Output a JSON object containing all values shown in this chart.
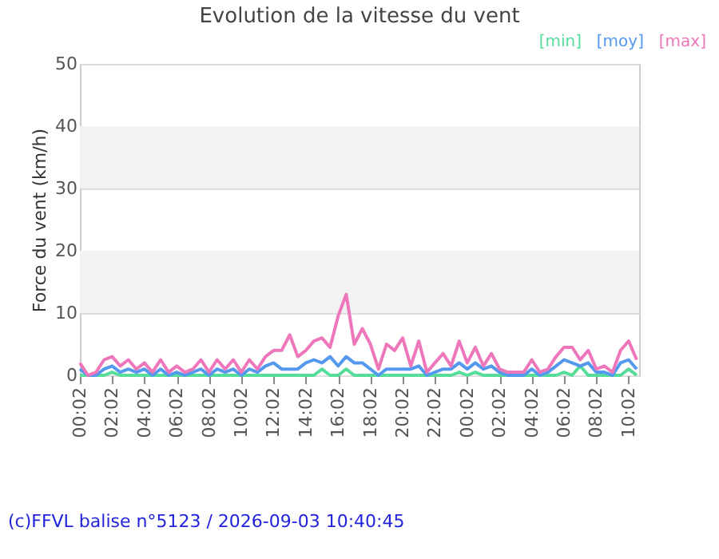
{
  "chart_data": {
    "type": "line",
    "title": "Evolution de la vitesse du vent",
    "ylabel": "Force du vent (km/h)",
    "x": [
      "2026-09-02T00:02",
      "2026-09-02T00:32",
      "2026-09-02T01:02",
      "2026-09-02T01:32",
      "2026-09-02T02:02",
      "2026-09-02T02:32",
      "2026-09-02T03:02",
      "2026-09-02T03:32",
      "2026-09-02T04:02",
      "2026-09-02T04:32",
      "2026-09-02T05:02",
      "2026-09-02T05:32",
      "2026-09-02T06:02",
      "2026-09-02T06:32",
      "2026-09-02T07:02",
      "2026-09-02T07:32",
      "2026-09-02T08:02",
      "2026-09-02T08:32",
      "2026-09-02T09:02",
      "2026-09-02T09:32",
      "2026-09-02T10:02",
      "2026-09-02T10:32",
      "2026-09-02T11:02",
      "2026-09-02T11:32",
      "2026-09-02T12:02",
      "2026-09-02T12:32",
      "2026-09-02T13:02",
      "2026-09-02T13:32",
      "2026-09-02T14:02",
      "2026-09-02T14:32",
      "2026-09-02T15:02",
      "2026-09-02T15:32",
      "2026-09-02T16:02",
      "2026-09-02T16:32",
      "2026-09-02T17:02",
      "2026-09-02T17:32",
      "2026-09-02T18:02",
      "2026-09-02T18:32",
      "2026-09-02T19:02",
      "2026-09-02T19:32",
      "2026-09-02T20:02",
      "2026-09-02T20:32",
      "2026-09-02T21:02",
      "2026-09-02T21:32",
      "2026-09-02T22:02",
      "2026-09-02T22:32",
      "2026-09-02T23:02",
      "2026-09-02T23:32",
      "2026-09-03T00:02",
      "2026-09-03T00:32",
      "2026-09-03T01:02",
      "2026-09-03T01:32",
      "2026-09-03T02:02",
      "2026-09-03T02:32",
      "2026-09-03T03:02",
      "2026-09-03T03:32",
      "2026-09-03T04:02",
      "2026-09-03T04:32",
      "2026-09-03T05:02",
      "2026-09-03T05:32",
      "2026-09-03T06:02",
      "2026-09-03T06:32",
      "2026-09-03T07:02",
      "2026-09-03T07:32",
      "2026-09-03T08:02",
      "2026-09-03T08:32",
      "2026-09-03T09:02",
      "2026-09-03T09:32",
      "2026-09-03T10:02",
      "2026-09-03T10:32"
    ],
    "series": [
      {
        "name": "[min]",
        "color": "#55dd99",
        "values": [
          0,
          0,
          0,
          0,
          0.5,
          0,
          0,
          0,
          0,
          0,
          0,
          0,
          0,
          0,
          0,
          0,
          0,
          0,
          0,
          0,
          0,
          0,
          0,
          0,
          0,
          0,
          0,
          0,
          0,
          0,
          1,
          0,
          0,
          1,
          0,
          0,
          0,
          0,
          0,
          0,
          0,
          0,
          0,
          0,
          0,
          0,
          0,
          0.5,
          0,
          0.5,
          0,
          0,
          0,
          0,
          0,
          0,
          0,
          0,
          0,
          0,
          0.5,
          0,
          1.5,
          0,
          0,
          0,
          0,
          0,
          1,
          0
        ]
      },
      {
        "name": "[moy]",
        "color": "#5599ee",
        "values": [
          1,
          0,
          0,
          1,
          1.5,
          0.5,
          1,
          0.5,
          1,
          0,
          1,
          0,
          0.5,
          0,
          0.5,
          1,
          0,
          1,
          0.5,
          1,
          0,
          1,
          0.5,
          1.5,
          2,
          1,
          1,
          1,
          2,
          2.5,
          2,
          3,
          1.5,
          3,
          2,
          2,
          1,
          0,
          1,
          1,
          1,
          1,
          1.5,
          0,
          0.5,
          1,
          1,
          2,
          1,
          2,
          1,
          1.5,
          0.5,
          0,
          0,
          0,
          1,
          0,
          0.5,
          1.5,
          2.5,
          2,
          1.5,
          2,
          0.5,
          0.5,
          0,
          2,
          2.5,
          1
        ]
      },
      {
        "name": "[max]",
        "color": "#ee77bb",
        "values": [
          2,
          0,
          0.5,
          2.5,
          3,
          1.5,
          2.5,
          1,
          2,
          0.5,
          2.5,
          0.5,
          1.5,
          0.5,
          1,
          2.5,
          0.5,
          2.5,
          1,
          2.5,
          0.5,
          2.5,
          1,
          3,
          4,
          4,
          6.5,
          3,
          4,
          5.5,
          6,
          4.5,
          9.5,
          13,
          5,
          7.5,
          5,
          1,
          5,
          4,
          6,
          1.5,
          5.5,
          0.5,
          2,
          3.5,
          1.5,
          5.5,
          2,
          4.5,
          1.5,
          3.5,
          1,
          0.5,
          0.5,
          0.5,
          2.5,
          0.5,
          1,
          3,
          4.5,
          4.5,
          2.5,
          4,
          1,
          1.5,
          0.5,
          4,
          5.5,
          2.5
        ]
      }
    ],
    "xlim": [
      "2026-09-02T00:02",
      "2026-09-03T10:41"
    ],
    "xticks": [
      {
        "value": "2026-09-02T00:02",
        "label": "00:02"
      },
      {
        "value": "2026-09-02T02:02",
        "label": "02:02"
      },
      {
        "value": "2026-09-02T04:02",
        "label": "04:02"
      },
      {
        "value": "2026-09-02T06:02",
        "label": "06:02"
      },
      {
        "value": "2026-09-02T08:02",
        "label": "08:02"
      },
      {
        "value": "2026-09-02T10:02",
        "label": "10:02"
      },
      {
        "value": "2026-09-02T12:02",
        "label": "12:02"
      },
      {
        "value": "2026-09-02T14:02",
        "label": "14:02"
      },
      {
        "value": "2026-09-02T16:02",
        "label": "16:02"
      },
      {
        "value": "2026-09-02T18:02",
        "label": "18:02"
      },
      {
        "value": "2026-09-02T20:02",
        "label": "20:02"
      },
      {
        "value": "2026-09-02T22:02",
        "label": "22:02"
      },
      {
        "value": "2026-09-03T00:02",
        "label": "00:02"
      },
      {
        "value": "2026-09-03T02:02",
        "label": "02:02"
      },
      {
        "value": "2026-09-03T04:02",
        "label": "04:02"
      },
      {
        "value": "2026-09-03T06:02",
        "label": "06:02"
      },
      {
        "value": "2026-09-03T08:02",
        "label": "08:02"
      },
      {
        "value": "2026-09-03T10:02",
        "label": "10:02"
      }
    ],
    "ylim": [
      0,
      50
    ],
    "yticks": [
      0,
      10,
      20,
      30,
      40,
      50
    ],
    "bands": [
      {
        "axis": "y",
        "from": 10,
        "to": 20,
        "color": "#f2f2f2"
      },
      {
        "axis": "y",
        "from": 30,
        "to": 40,
        "color": "#f2f2f2"
      }
    ],
    "grid": "y",
    "legend": "top right",
    "marker": "none",
    "line_style": "solid",
    "annotations": [
      "(c)FFVL balise n°5123 / 2026-09-03 10:40:45"
    ]
  }
}
